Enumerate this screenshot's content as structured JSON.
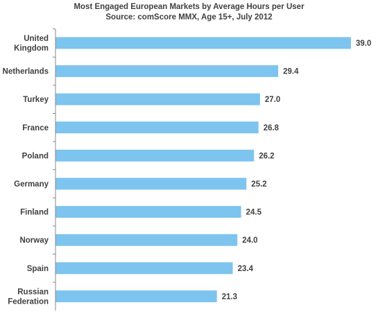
{
  "chart_data": {
    "type": "bar",
    "orientation": "horizontal",
    "title": "Most Engaged European Markets by Average Hours per User",
    "subtitle": "Source: comScore MMX, Age 15+, July 2012",
    "categories": [
      "United Kingdom",
      "Netherlands",
      "Turkey",
      "France",
      "Poland",
      "Germany",
      "Finland",
      "Norway",
      "Spain",
      "Russian Federation"
    ],
    "category_lines": [
      [
        "United",
        "Kingdom"
      ],
      [
        "Netherlands"
      ],
      [
        "Turkey"
      ],
      [
        "France"
      ],
      [
        "Poland"
      ],
      [
        "Germany"
      ],
      [
        "Finland"
      ],
      [
        "Norway"
      ],
      [
        "Spain"
      ],
      [
        "Russian",
        "Federation"
      ]
    ],
    "values": [
      39.0,
      29.4,
      27.0,
      26.8,
      26.2,
      25.2,
      24.5,
      24.0,
      23.4,
      21.3
    ],
    "value_labels": [
      "39.0",
      "29.4",
      "27.0",
      "26.8",
      "26.2",
      "25.2",
      "24.5",
      "24.0",
      "23.4",
      "21.3"
    ],
    "xlim": [
      0,
      40
    ],
    "xlabel": "",
    "ylabel": "",
    "grid": false,
    "legend": "none",
    "colors": {
      "bar": "#7dc4ee",
      "axis": "#888888",
      "text": "#404040"
    }
  }
}
